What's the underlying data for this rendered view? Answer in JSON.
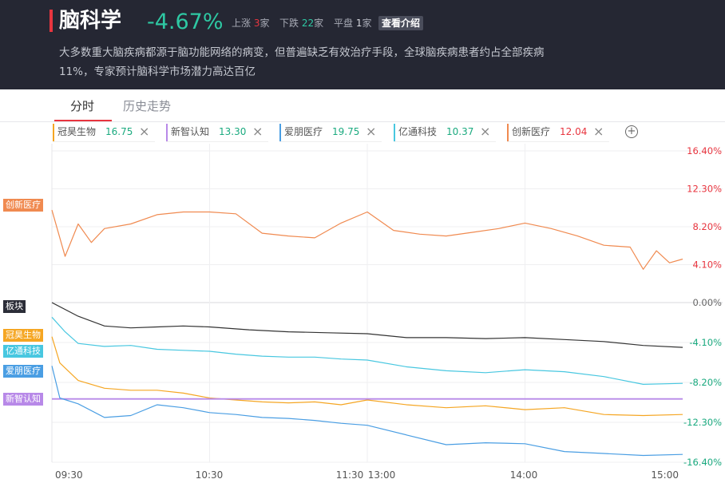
{
  "header": {
    "title": "脑科学",
    "change": "-4.67%",
    "up_label": "上涨",
    "up_count": "3",
    "down_label": "下跌",
    "down_count": "22",
    "flat_label": "平盘",
    "flat_count": "1",
    "unit": "家",
    "intro_button": "查看介绍",
    "description": "大多数重大脑疾病都源于脑功能网络的病变，但普遍缺乏有效治疗手段，全球脑疾病患者约占全部疾病11%，专家预计脑科学市场潜力高达百亿"
  },
  "tabs": [
    {
      "label": "分时",
      "active": true
    },
    {
      "label": "历史走势",
      "active": false
    }
  ],
  "chips": [
    {
      "name": "冠昊生物",
      "value": "16.75",
      "color": "#f5a623",
      "value_color": "#1aaa7f"
    },
    {
      "name": "新智认知",
      "value": "13.30",
      "color": "#b889e8",
      "value_color": "#1aaa7f"
    },
    {
      "name": "爱朋医疗",
      "value": "19.75",
      "color": "#4a9ee3",
      "value_color": "#1aaa7f"
    },
    {
      "name": "亿通科技",
      "value": "10.37",
      "color": "#48c7e0",
      "value_color": "#1aaa7f"
    },
    {
      "name": "创新医疗",
      "value": "12.04",
      "color": "#f08a50",
      "value_color": "#e8353f"
    }
  ],
  "add_icon": "plus-circle-icon",
  "close_icon": "close-icon",
  "chart_data": {
    "type": "line",
    "y_unit": "%",
    "ylim": [
      -16.4,
      16.4
    ],
    "y_ticks": [
      {
        "value": 16.4,
        "label": "16.40%"
      },
      {
        "value": 12.3,
        "label": "12.30%"
      },
      {
        "value": 8.2,
        "label": "8.20%"
      },
      {
        "value": 4.1,
        "label": "4.10%"
      },
      {
        "value": 0,
        "label": "0.00%"
      },
      {
        "value": -4.1,
        "label": "-4.10%"
      },
      {
        "value": -8.2,
        "label": "-8.20%"
      },
      {
        "value": -12.3,
        "label": "-12.30%"
      },
      {
        "value": -16.4,
        "label": "-16.40%"
      }
    ],
    "x_ticks": [
      "09:30",
      "10:30",
      "11:30",
      "13:00",
      "14:00",
      "15:00"
    ],
    "positive_color": "#e8353f",
    "negative_color": "#1aaa7f",
    "grid": true,
    "series": [
      {
        "name": "创新医疗",
        "color": "#f08a50",
        "times": [
          "09:30",
          "09:35",
          "09:40",
          "09:45",
          "09:50",
          "10:00",
          "10:10",
          "10:20",
          "10:30",
          "10:40",
          "10:50",
          "11:00",
          "11:10",
          "11:20",
          "11:30",
          "13:10",
          "13:20",
          "13:30",
          "13:40",
          "13:50",
          "14:00",
          "14:10",
          "14:20",
          "14:30",
          "14:40",
          "14:45",
          "14:50",
          "14:55",
          "15:00"
        ],
        "values": [
          10.0,
          5.0,
          8.5,
          6.5,
          8.0,
          8.5,
          9.5,
          9.8,
          9.8,
          9.6,
          7.5,
          7.2,
          7.0,
          8.6,
          9.8,
          7.8,
          7.4,
          7.2,
          7.6,
          8.0,
          8.6,
          8.0,
          7.2,
          6.2,
          6.0,
          3.6,
          5.6,
          4.3,
          4.7
        ]
      },
      {
        "name": "板块",
        "color": "#333333",
        "times": [
          "09:30",
          "09:40",
          "09:50",
          "10:00",
          "10:10",
          "10:20",
          "10:30",
          "10:45",
          "11:00",
          "11:15",
          "11:30",
          "13:15",
          "13:30",
          "13:45",
          "14:00",
          "14:15",
          "14:30",
          "14:45",
          "15:00"
        ],
        "values": [
          0.0,
          -1.4,
          -2.4,
          -2.6,
          -2.5,
          -2.4,
          -2.5,
          -2.8,
          -3.0,
          -3.1,
          -3.2,
          -3.6,
          -3.6,
          -3.7,
          -3.6,
          -3.8,
          -4.0,
          -4.4,
          -4.6
        ]
      },
      {
        "name": "冠昊生物",
        "color": "#f5a623",
        "times": [
          "09:30",
          "09:33",
          "09:40",
          "09:50",
          "10:00",
          "10:10",
          "10:20",
          "10:30",
          "10:40",
          "10:50",
          "11:00",
          "11:10",
          "11:20",
          "11:30",
          "13:15",
          "13:30",
          "13:45",
          "14:00",
          "14:15",
          "14:30",
          "14:45",
          "15:00"
        ],
        "values": [
          -3.5,
          -6.2,
          -8.0,
          -8.8,
          -9.0,
          -9.0,
          -9.3,
          -9.8,
          -10.0,
          -10.2,
          -10.3,
          -10.2,
          -10.5,
          -10.0,
          -10.5,
          -10.8,
          -10.6,
          -11.0,
          -10.8,
          -11.5,
          -11.6,
          -11.5
        ]
      },
      {
        "name": "亿通科技",
        "color": "#48c7e0",
        "times": [
          "09:30",
          "09:35",
          "09:40",
          "09:50",
          "10:00",
          "10:10",
          "10:20",
          "10:30",
          "10:40",
          "10:50",
          "11:00",
          "11:10",
          "11:20",
          "11:30",
          "13:15",
          "13:30",
          "13:45",
          "14:00",
          "14:15",
          "14:30",
          "14:45",
          "15:00"
        ],
        "values": [
          -1.5,
          -3.0,
          -4.2,
          -4.5,
          -4.4,
          -4.8,
          -4.9,
          -5.0,
          -5.3,
          -5.5,
          -5.6,
          -5.6,
          -5.8,
          -5.9,
          -6.6,
          -7.0,
          -7.2,
          -6.9,
          -7.1,
          -7.6,
          -8.4,
          -8.3
        ]
      },
      {
        "name": "新智认知",
        "color": "#b889e8",
        "times": [
          "09:30",
          "15:00"
        ],
        "values": [
          -9.9,
          -9.9
        ]
      },
      {
        "name": "爱朋医疗",
        "color": "#4a9ee3",
        "times": [
          "09:30",
          "09:33",
          "09:40",
          "09:50",
          "10:00",
          "10:10",
          "10:20",
          "10:30",
          "10:40",
          "10:50",
          "11:00",
          "11:10",
          "11:20",
          "11:30",
          "13:15",
          "13:30",
          "13:45",
          "14:00",
          "14:15",
          "14:30",
          "14:45",
          "15:00"
        ],
        "values": [
          -6.5,
          -9.8,
          -10.4,
          -11.8,
          -11.6,
          -10.5,
          -10.8,
          -11.3,
          -11.5,
          -11.8,
          -11.9,
          -12.1,
          -12.4,
          -12.6,
          -13.6,
          -14.6,
          -14.4,
          -14.5,
          -15.3,
          -15.5,
          -15.7,
          -15.6
        ]
      }
    ]
  }
}
